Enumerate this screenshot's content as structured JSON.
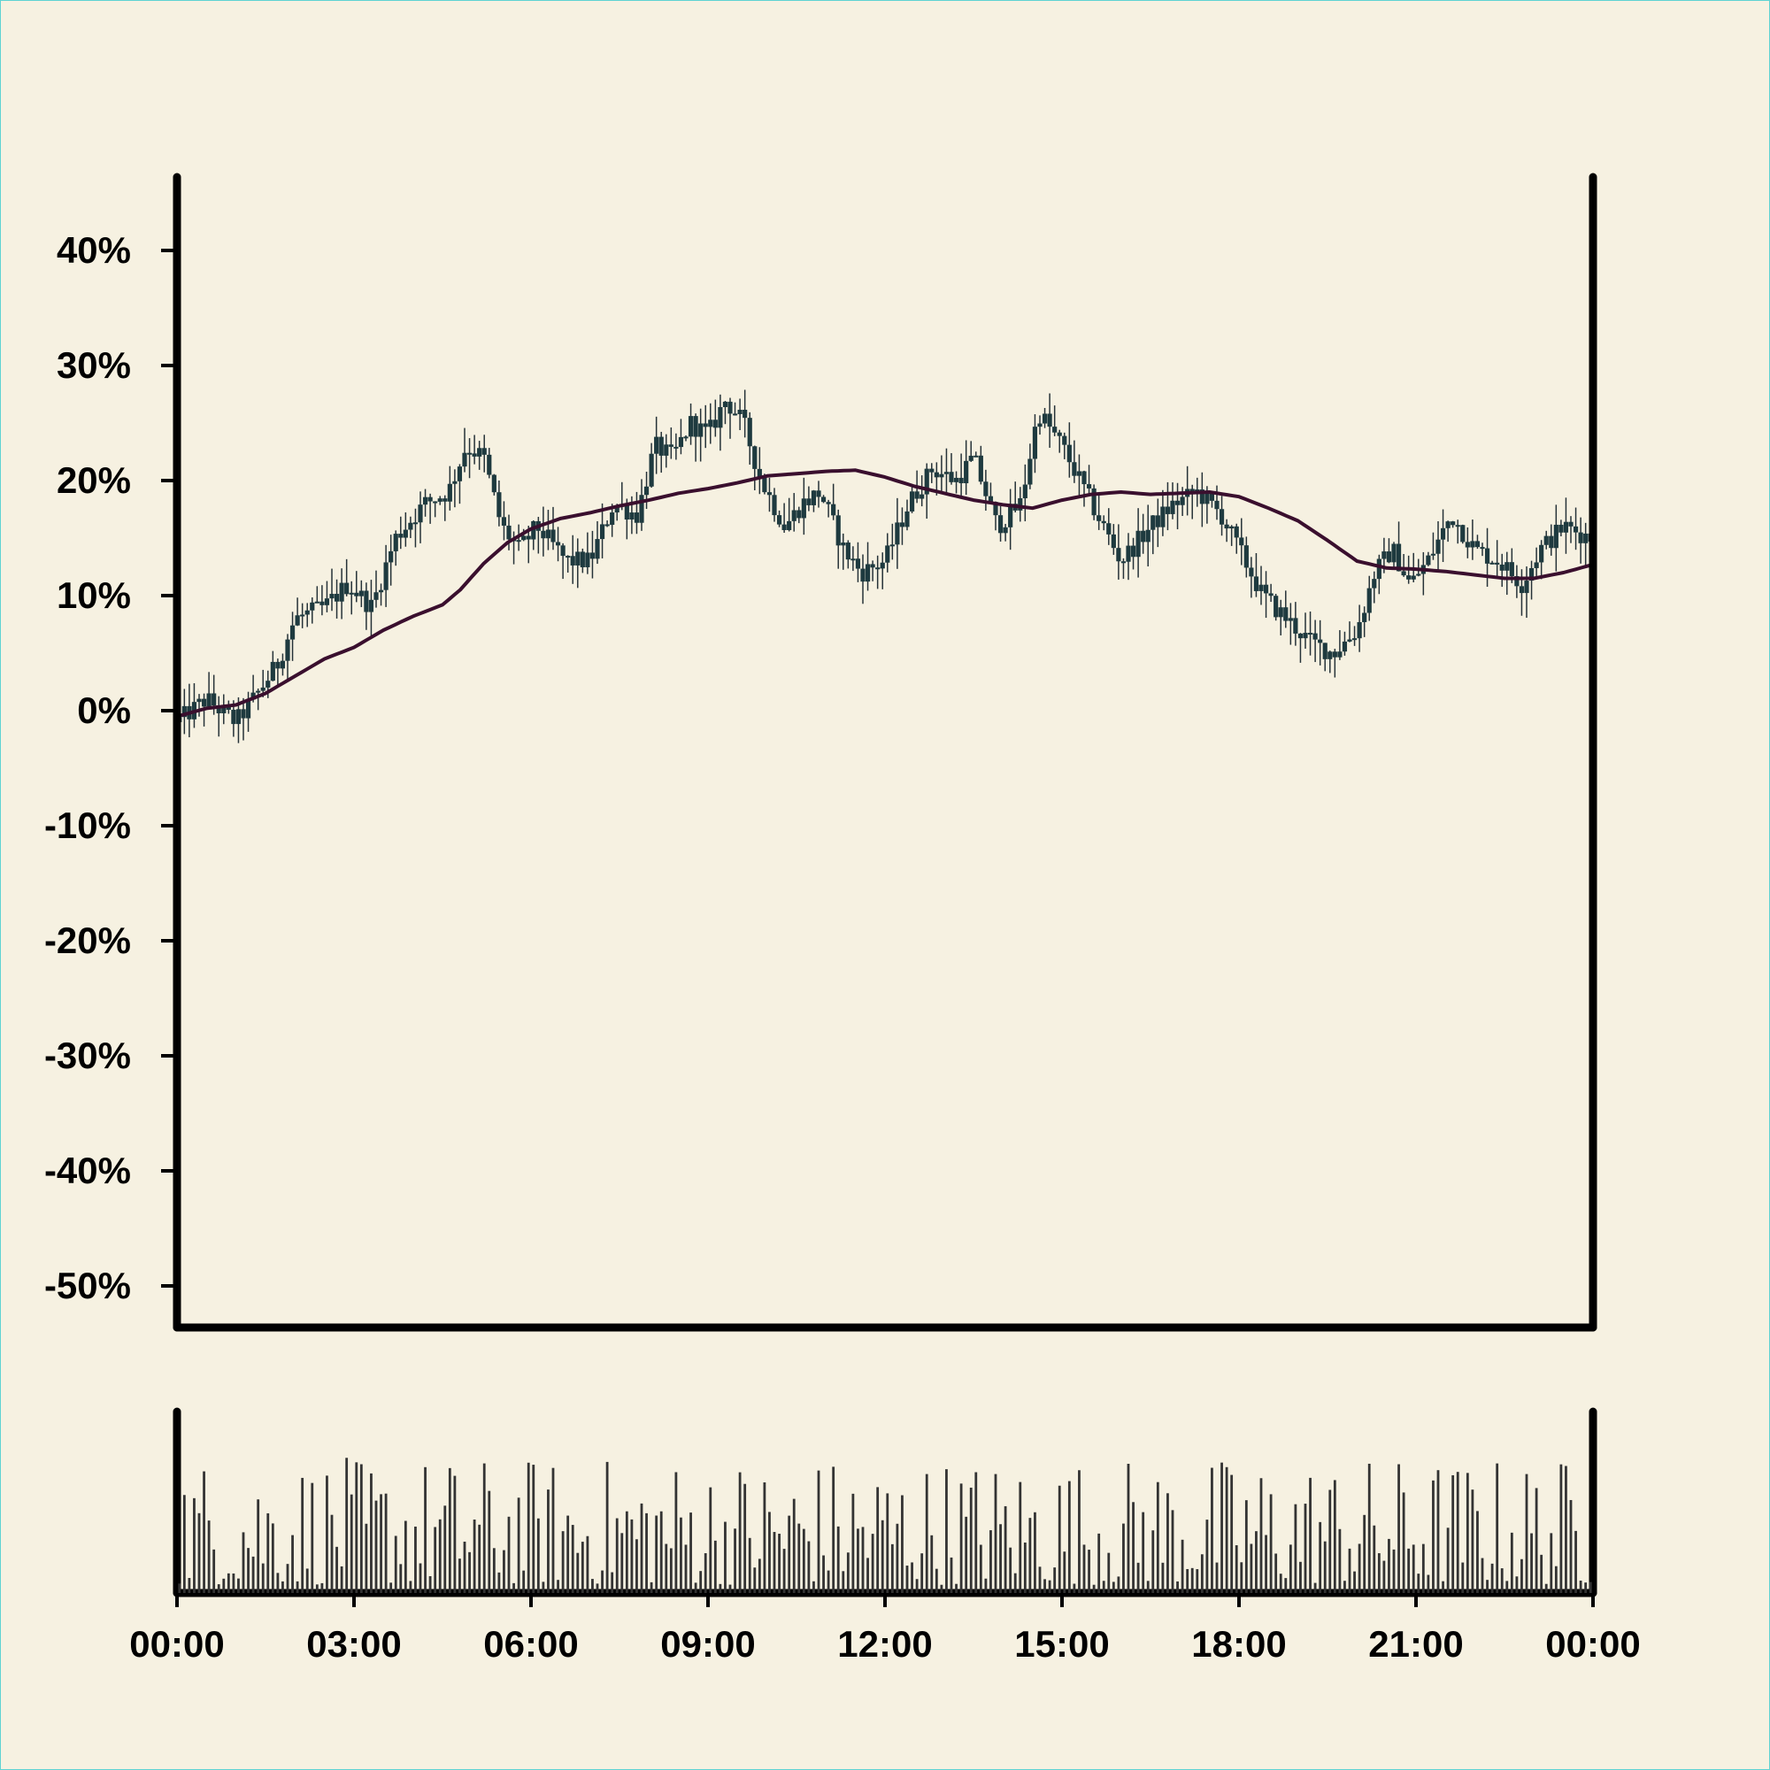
{
  "colors": {
    "background": "#f6f1e1",
    "frame_border": "#5fd3d3",
    "axis": "#000000",
    "candle_body": "#1e3a3f",
    "candle_wick": "#263238",
    "moving_average": "#3a0f2e",
    "volume_bar": "#333333"
  },
  "chart_data": [
    {
      "type": "candlestick",
      "title": "",
      "xlabel": "",
      "ylabel": "",
      "ylim": [
        -53,
        46
      ],
      "y_ticks": [
        "40%",
        "30%",
        "20%",
        "10%",
        "0%",
        "-10%",
        "-20%",
        "-30%",
        "-40%",
        "-50%"
      ],
      "y_tick_values": [
        40,
        30,
        20,
        10,
        0,
        -10,
        -20,
        -30,
        -40,
        -50
      ],
      "grid": false,
      "legend": "none",
      "close_path": {
        "x_hours": [
          0,
          0.5,
          1.0,
          1.3,
          1.7,
          2.0,
          2.5,
          2.9,
          3.3,
          3.7,
          4.2,
          4.6,
          4.9,
          5.2,
          5.5,
          5.8,
          6.1,
          6.6,
          7.0,
          7.4,
          7.8,
          8.1,
          8.4,
          8.7,
          9.0,
          9.3,
          9.6,
          9.9,
          10.3,
          10.6,
          10.9,
          11.3,
          11.6,
          12.0,
          12.4,
          12.8,
          13.2,
          13.5,
          13.9,
          14.3,
          14.6,
          15.0,
          15.3,
          15.6,
          16.0,
          16.5,
          16.9,
          17.3,
          17.7,
          18.0,
          18.4,
          18.8,
          19.2,
          19.6,
          20.0,
          20.3,
          20.6,
          20.9,
          21.2,
          21.6,
          22.0,
          22.4,
          22.8,
          23.1,
          23.5,
          24.0
        ],
        "y_percent": [
          -1,
          1,
          -1,
          1,
          4,
          8,
          9,
          11,
          9,
          15,
          18,
          19,
          23,
          22,
          16,
          14,
          16,
          13,
          13,
          18,
          17,
          23,
          22,
          25,
          24,
          27,
          25,
          20,
          16,
          18,
          19,
          14,
          12,
          13,
          18,
          21,
          20,
          22,
          16,
          18,
          26,
          23,
          20,
          17,
          13,
          16,
          18,
          19,
          17,
          14,
          10,
          8,
          6,
          5,
          7,
          12,
          14,
          11,
          13,
          17,
          14,
          13,
          11,
          14,
          16,
          15
        ]
      },
      "moving_average": {
        "x_hours": [
          0,
          0.5,
          1.0,
          1.5,
          2.0,
          2.5,
          3.0,
          3.5,
          4.0,
          4.5,
          4.8,
          5.2,
          5.6,
          6.0,
          6.5,
          7.0,
          7.5,
          8.0,
          8.5,
          9.0,
          9.5,
          10.0,
          10.5,
          11.0,
          11.5,
          12.0,
          12.5,
          13.0,
          13.5,
          14.0,
          14.5,
          15.0,
          15.5,
          16.0,
          16.5,
          17.0,
          17.5,
          18.0,
          18.5,
          19.0,
          19.5,
          20.0,
          20.5,
          21.0,
          21.5,
          22.0,
          22.5,
          23.0,
          23.5,
          24.0
        ],
        "y_percent": [
          -0.5,
          0.2,
          0.5,
          1.5,
          3.0,
          4.5,
          5.5,
          7.0,
          8.2,
          9.2,
          10.5,
          12.8,
          14.6,
          15.8,
          16.7,
          17.2,
          17.8,
          18.3,
          18.9,
          19.3,
          19.8,
          20.4,
          20.6,
          20.8,
          20.9,
          20.3,
          19.5,
          18.9,
          18.3,
          17.9,
          17.6,
          18.3,
          18.8,
          19.0,
          18.8,
          18.9,
          19.0,
          18.6,
          17.6,
          16.5,
          14.8,
          13.0,
          12.4,
          12.3,
          12.1,
          11.8,
          11.5,
          11.5,
          12.0,
          12.7
        ]
      }
    },
    {
      "type": "bar",
      "title": "",
      "xlabel": "",
      "ylabel": "",
      "x_ticks": [
        "00:00",
        "03:00",
        "06:00",
        "09:00",
        "12:00",
        "15:00",
        "18:00",
        "21:00",
        "00:00"
      ],
      "x_tick_hours": [
        0,
        3,
        6,
        9,
        12,
        15,
        18,
        21,
        24
      ],
      "bar_count": 288,
      "grid": false,
      "legend": "none"
    }
  ]
}
